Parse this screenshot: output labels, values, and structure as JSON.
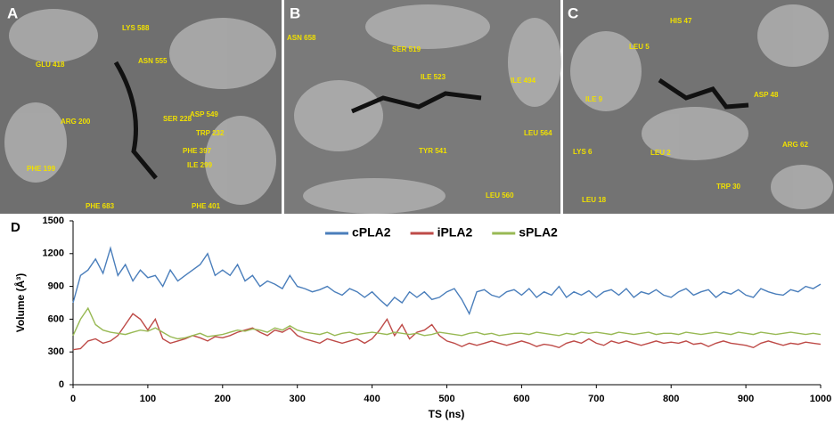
{
  "panels": [
    {
      "label": "A",
      "residues": [
        "LYS 588",
        "GLU 418",
        "ASN 555",
        "ASP 549",
        "ARG 200",
        "SER 228",
        "TRP 232",
        "PHE 397",
        "PHE 199",
        "ILE 299",
        "PHE 683",
        "PHE 401"
      ]
    },
    {
      "label": "B",
      "residues": [
        "ASN 658",
        "SER 519",
        "ILE 523",
        "ILE 494",
        "LEU 564",
        "TYR 541",
        "LEU 560"
      ]
    },
    {
      "label": "C",
      "residues": [
        "HIS 47",
        "LEU 5",
        "ASP 48",
        "ILE 9",
        "LYS 6",
        "LEU 2",
        "ARG 62",
        "TRP 30",
        "LEU 18"
      ]
    }
  ],
  "chart_data": {
    "type": "line",
    "panel_label": "D",
    "xlabel": "TS (ns)",
    "ylabel": "Volume (Å³)",
    "xlim": [
      0,
      1000
    ],
    "xticks": [
      0,
      100,
      200,
      300,
      400,
      500,
      600,
      700,
      800,
      900,
      1000
    ],
    "ylim": [
      0,
      1500
    ],
    "yticks": [
      0,
      300,
      600,
      900,
      1200,
      1500
    ],
    "x": [
      0,
      10,
      20,
      30,
      40,
      50,
      60,
      70,
      80,
      90,
      100,
      110,
      120,
      130,
      140,
      150,
      160,
      170,
      180,
      190,
      200,
      210,
      220,
      230,
      240,
      250,
      260,
      270,
      280,
      290,
      300,
      310,
      320,
      330,
      340,
      350,
      360,
      370,
      380,
      390,
      400,
      410,
      420,
      430,
      440,
      450,
      460,
      470,
      480,
      490,
      500,
      510,
      520,
      530,
      540,
      550,
      560,
      570,
      580,
      590,
      600,
      610,
      620,
      630,
      640,
      650,
      660,
      670,
      680,
      690,
      700,
      710,
      720,
      730,
      740,
      750,
      760,
      770,
      780,
      790,
      800,
      810,
      820,
      830,
      840,
      850,
      860,
      870,
      880,
      890,
      900,
      910,
      920,
      930,
      940,
      950,
      960,
      970,
      980,
      990,
      1000
    ],
    "series": [
      {
        "name": "cPLA2",
        "color": "#4a7ebb",
        "values": [
          750,
          1000,
          1050,
          1150,
          1020,
          1250,
          1000,
          1100,
          950,
          1050,
          980,
          1000,
          900,
          1050,
          950,
          1000,
          1050,
          1100,
          1200,
          1000,
          1050,
          1000,
          1100,
          950,
          1000,
          900,
          950,
          920,
          880,
          1000,
          900,
          880,
          850,
          870,
          900,
          850,
          820,
          880,
          850,
          800,
          850,
          780,
          720,
          800,
          750,
          850,
          800,
          850,
          780,
          800,
          850,
          880,
          780,
          650,
          850,
          870,
          820,
          800,
          850,
          870,
          820,
          880,
          800,
          850,
          820,
          900,
          800,
          850,
          820,
          860,
          800,
          850,
          870,
          820,
          880,
          800,
          850,
          830,
          870,
          820,
          800,
          850,
          880,
          820,
          850,
          870,
          800,
          850,
          830,
          870,
          820,
          800,
          880,
          850,
          830,
          820,
          870,
          850,
          900,
          880,
          920
        ]
      },
      {
        "name": "iPLA2",
        "color": "#be4b48",
        "values": [
          320,
          330,
          400,
          420,
          380,
          400,
          450,
          550,
          650,
          600,
          500,
          600,
          420,
          380,
          400,
          420,
          450,
          430,
          400,
          440,
          430,
          450,
          480,
          500,
          520,
          480,
          450,
          500,
          480,
          520,
          450,
          420,
          400,
          380,
          420,
          400,
          380,
          400,
          420,
          380,
          420,
          500,
          600,
          450,
          550,
          420,
          480,
          500,
          550,
          450,
          400,
          380,
          350,
          380,
          360,
          380,
          400,
          380,
          360,
          380,
          400,
          380,
          350,
          370,
          360,
          340,
          380,
          400,
          380,
          420,
          380,
          360,
          400,
          380,
          400,
          380,
          360,
          380,
          400,
          380,
          390,
          380,
          400,
          370,
          380,
          350,
          380,
          400,
          380,
          370,
          360,
          340,
          380,
          400,
          380,
          360,
          380,
          370,
          390,
          380,
          370
        ]
      },
      {
        "name": "sPLA2",
        "color": "#98b954",
        "values": [
          450,
          600,
          700,
          550,
          500,
          480,
          470,
          460,
          480,
          500,
          490,
          520,
          480,
          440,
          420,
          430,
          450,
          470,
          440,
          450,
          460,
          480,
          500,
          490,
          510,
          500,
          480,
          520,
          500,
          540,
          500,
          480,
          470,
          460,
          480,
          450,
          470,
          480,
          460,
          470,
          480,
          470,
          460,
          480,
          470,
          460,
          470,
          450,
          460,
          480,
          470,
          460,
          450,
          470,
          480,
          460,
          470,
          450,
          460,
          470,
          470,
          460,
          480,
          470,
          460,
          450,
          470,
          460,
          480,
          470,
          480,
          470,
          460,
          480,
          470,
          460,
          470,
          480,
          460,
          470,
          470,
          460,
          480,
          470,
          460,
          470,
          480,
          470,
          460,
          480,
          470,
          460,
          480,
          470,
          460,
          470,
          480,
          470,
          460,
          470,
          460
        ]
      }
    ]
  }
}
